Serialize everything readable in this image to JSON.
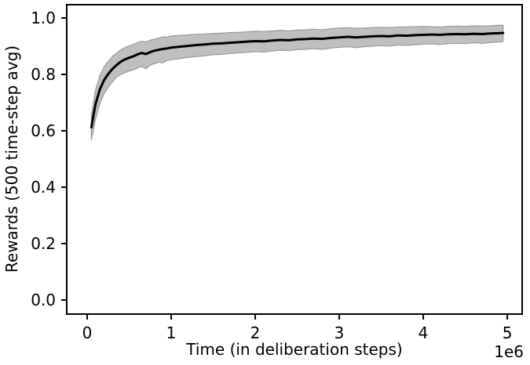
{
  "colors": {
    "background": "#ffffff",
    "spine": "#000000",
    "tick": "#000000",
    "text": "#000000",
    "mean_line": "#000000",
    "band_fill": "#bfbfbf",
    "band_edge": "#999999"
  },
  "chart_data": {
    "type": "line",
    "title": "",
    "xlabel": "Time (in deliberation steps)",
    "ylabel": "Rewards (500 time-step avg)",
    "x_offset_label": "1e6",
    "x_unit_multiplier": 1000000,
    "xlim": [
      -0.243,
      5.177
    ],
    "ylim": [
      -0.05,
      1.047
    ],
    "x_ticks": [
      0,
      1,
      2,
      3,
      4,
      5
    ],
    "x_tick_labels": [
      "0",
      "1",
      "2",
      "3",
      "4",
      "5"
    ],
    "y_ticks": [
      0.0,
      0.2,
      0.4,
      0.6,
      0.8,
      1.0
    ],
    "y_tick_labels": [
      "0.0",
      "0.2",
      "0.4",
      "0.6",
      "0.8",
      "1.0"
    ],
    "grid": false,
    "legend": null,
    "x": [
      0.05,
      0.1,
      0.15,
      0.2,
      0.25,
      0.3,
      0.35,
      0.4,
      0.45,
      0.5,
      0.55,
      0.6,
      0.65,
      0.7,
      0.75,
      0.8,
      0.85,
      0.9,
      0.95,
      1.0,
      1.1,
      1.2,
      1.3,
      1.4,
      1.5,
      1.6,
      1.7,
      1.8,
      1.9,
      2.0,
      2.1,
      2.2,
      2.3,
      2.4,
      2.5,
      2.6,
      2.7,
      2.8,
      2.9,
      3.0,
      3.1,
      3.2,
      3.3,
      3.4,
      3.5,
      3.6,
      3.7,
      3.8,
      3.9,
      4.0,
      4.1,
      4.2,
      4.3,
      4.4,
      4.5,
      4.6,
      4.7,
      4.8,
      4.9,
      4.95
    ],
    "series": [
      {
        "name": "mean",
        "color": "#000000",
        "values": [
          0.612,
          0.695,
          0.746,
          0.779,
          0.801,
          0.819,
          0.833,
          0.845,
          0.853,
          0.859,
          0.864,
          0.871,
          0.876,
          0.872,
          0.879,
          0.884,
          0.887,
          0.89,
          0.892,
          0.895,
          0.898,
          0.901,
          0.904,
          0.906,
          0.909,
          0.91,
          0.912,
          0.914,
          0.916,
          0.918,
          0.917,
          0.92,
          0.922,
          0.921,
          0.924,
          0.925,
          0.927,
          0.926,
          0.929,
          0.931,
          0.933,
          0.931,
          0.933,
          0.935,
          0.936,
          0.935,
          0.938,
          0.937,
          0.939,
          0.94,
          0.941,
          0.94,
          0.942,
          0.943,
          0.942,
          0.944,
          0.943,
          0.945,
          0.946,
          0.947
        ]
      }
    ],
    "band": {
      "name": "band",
      "fill": "#bfbfbf",
      "edge": "#999999",
      "lower": [
        0.568,
        0.642,
        0.695,
        0.731,
        0.754,
        0.773,
        0.79,
        0.8,
        0.806,
        0.812,
        0.816,
        0.823,
        0.828,
        0.82,
        0.833,
        0.838,
        0.843,
        0.841,
        0.849,
        0.852,
        0.856,
        0.86,
        0.863,
        0.866,
        0.87,
        0.871,
        0.874,
        0.876,
        0.878,
        0.881,
        0.879,
        0.883,
        0.886,
        0.884,
        0.888,
        0.889,
        0.891,
        0.889,
        0.893,
        0.896,
        0.898,
        0.895,
        0.898,
        0.9,
        0.902,
        0.9,
        0.904,
        0.903,
        0.905,
        0.907,
        0.908,
        0.906,
        0.909,
        0.91,
        0.909,
        0.912,
        0.91,
        0.913,
        0.915,
        0.916
      ],
      "upper": [
        0.655,
        0.745,
        0.795,
        0.826,
        0.846,
        0.863,
        0.875,
        0.887,
        0.895,
        0.901,
        0.906,
        0.913,
        0.917,
        0.915,
        0.921,
        0.925,
        0.928,
        0.933,
        0.932,
        0.936,
        0.938,
        0.94,
        0.942,
        0.943,
        0.945,
        0.946,
        0.948,
        0.949,
        0.951,
        0.953,
        0.952,
        0.954,
        0.956,
        0.954,
        0.957,
        0.958,
        0.96,
        0.958,
        0.962,
        0.964,
        0.966,
        0.963,
        0.964,
        0.966,
        0.967,
        0.966,
        0.968,
        0.968,
        0.969,
        0.97,
        0.969,
        0.968,
        0.97,
        0.971,
        0.97,
        0.972,
        0.971,
        0.972,
        0.974,
        0.974
      ]
    }
  }
}
